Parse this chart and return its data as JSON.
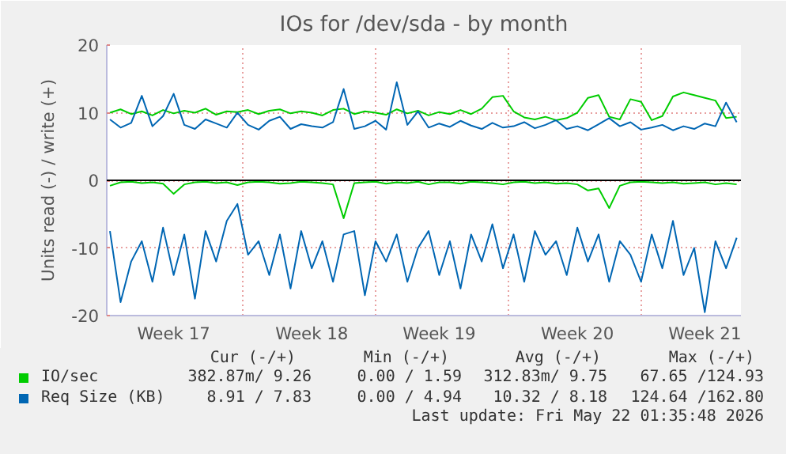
{
  "chart_data": {
    "type": "line",
    "title": "IOs for /dev/sda - by month",
    "ylabel": "Units read (-) / write (+)",
    "categories": [
      null,
      null,
      null,
      null,
      null,
      null,
      "Week 17",
      null,
      null,
      null,
      null,
      null,
      null,
      null,
      null,
      null,
      null,
      null,
      null,
      "Week 18",
      null,
      null,
      null,
      null,
      null,
      null,
      null,
      null,
      null,
      null,
      null,
      "Week 19",
      null,
      null,
      null,
      null,
      null,
      null,
      null,
      null,
      null,
      null,
      null,
      null,
      "Week 20",
      null,
      null,
      null,
      null,
      null,
      null,
      null,
      null,
      null,
      null,
      null,
      "Week 21",
      null,
      null,
      null
    ],
    "series": [
      {
        "color": "#00cc00",
        "values": [
          -0.8,
          -0.3,
          -0.2,
          -0.4,
          -0.3,
          -0.5,
          -2.0,
          -0.6,
          -0.3,
          -0.2,
          -0.4,
          -0.3,
          -0.7,
          -0.3,
          -0.2,
          -0.3,
          -0.5,
          -0.4,
          -0.2,
          -0.3,
          -0.4,
          -0.6,
          -5.6,
          -0.4,
          -0.3,
          -0.2,
          -0.5,
          -0.3,
          -0.4,
          -0.2,
          -0.6,
          -0.3,
          -0.3,
          -0.5,
          -0.2,
          -0.3,
          -0.4,
          -0.6,
          -0.3,
          -0.2,
          -0.4,
          -0.3,
          -0.5,
          -0.4,
          -0.6,
          -1.5,
          -1.2,
          -4.1,
          -0.8,
          -0.3,
          -0.2,
          -0.3,
          -0.4,
          -0.3,
          -0.5,
          -0.4,
          -0.3,
          -0.6,
          -0.4,
          -0.6
        ]
      },
      {
        "name": "IO/sec",
        "color": "#00cc00",
        "values": [
          10,
          10.5,
          9.8,
          10.2,
          9.6,
          10.4,
          9.9,
          10.3,
          10.0,
          10.6,
          9.7,
          10.2,
          10.1,
          10.4,
          9.8,
          10.3,
          10.5,
          9.9,
          10.2,
          10.0,
          9.6,
          10.4,
          10.6,
          9.8,
          10.2,
          10.0,
          9.7,
          10.5,
          9.9,
          10.3,
          9.6,
          10.1,
          9.8,
          10.4,
          9.8,
          10.6,
          12.3,
          12.5,
          10.2,
          9.3,
          9.0,
          9.4,
          8.9,
          9.2,
          10.0,
          12.2,
          12.6,
          9.4,
          9.0,
          12.0,
          11.6,
          8.9,
          9.5,
          12.4,
          13.0,
          12.6,
          12.2,
          11.8,
          9.2,
          9.4
        ]
      },
      {
        "color": "#0066b3",
        "values": [
          -7.5,
          -18.0,
          -12.0,
          -9.0,
          -15.0,
          -7.0,
          -14.0,
          -8.0,
          -17.5,
          -7.5,
          -12.0,
          -6.0,
          -3.5,
          -11.0,
          -9.0,
          -14.0,
          -8.0,
          -16.0,
          -7.5,
          -13.0,
          -9.0,
          -15.0,
          -8.0,
          -7.5,
          -17.0,
          -9.0,
          -12.0,
          -8.0,
          -15.0,
          -10.0,
          -7.5,
          -14.0,
          -9.0,
          -16.0,
          -8.0,
          -12.0,
          -6.5,
          -13.0,
          -8.0,
          -15.0,
          -7.5,
          -11.0,
          -9.0,
          -14.0,
          -7.0,
          -12.0,
          -8.0,
          -15.0,
          -9.0,
          -11.0,
          -15.0,
          -8.0,
          -13.0,
          -6.0,
          -14.0,
          -10.0,
          -19.5,
          -9.0,
          -13.0,
          -8.5
        ]
      },
      {
        "name": "Req Size (KB)",
        "color": "#0066b3",
        "values": [
          9.0,
          7.8,
          8.5,
          12.5,
          8.0,
          9.5,
          12.8,
          8.2,
          7.6,
          9.0,
          8.4,
          7.8,
          10.0,
          8.2,
          7.5,
          8.8,
          9.4,
          7.6,
          8.3,
          8.0,
          7.8,
          8.6,
          13.5,
          7.6,
          8.0,
          8.8,
          7.5,
          14.5,
          8.2,
          10.2,
          7.8,
          8.4,
          7.9,
          8.8,
          8.1,
          7.6,
          8.5,
          7.8,
          8.0,
          8.6,
          7.7,
          8.2,
          8.9,
          7.6,
          8.0,
          7.4,
          8.3,
          9.2,
          8.0,
          8.6,
          7.5,
          7.8,
          8.2,
          7.4,
          8.0,
          7.6,
          8.4,
          8.0,
          11.5,
          8.6
        ]
      }
    ],
    "ylim": [
      -20,
      20
    ],
    "yticks": [
      -20,
      -10,
      0,
      10,
      20
    ],
    "grid": true,
    "legend": "bottom",
    "ref_lines": [
      {
        "axis": "y",
        "value": 0,
        "color": "#000000"
      }
    ],
    "annotations": [
      "Cur (-/+)",
      "Min (-/+)",
      "Avg (-/+)",
      "Max (-/+)",
      "382.87m/ 9.26",
      "0.00 / 1.59",
      "312.83m/ 9.75",
      "67.65 /124.93",
      "8.91 / 7.83",
      "0.00 / 4.94",
      "10.32 / 8.18",
      "124.64 /162.80",
      "Last update: Fri May 22 01:35:48 2026"
    ]
  }
}
